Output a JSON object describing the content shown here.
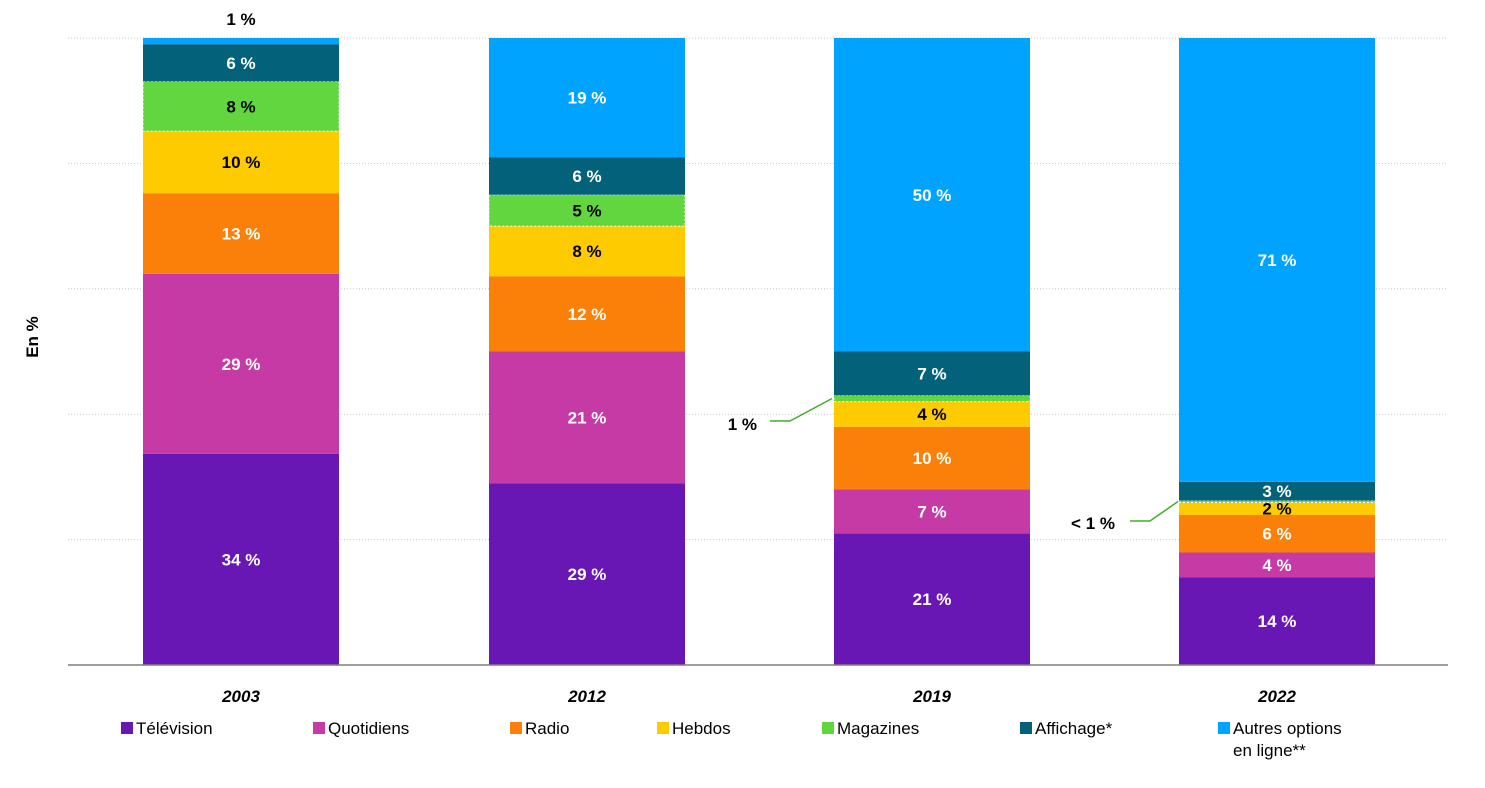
{
  "chart_data": {
    "type": "bar",
    "stacked": true,
    "ylabel": "En %",
    "ylim": [
      0,
      100
    ],
    "grid": true,
    "legend_position": "bottom",
    "categories": [
      "2003",
      "2012",
      "2019",
      "2022"
    ],
    "series": [
      {
        "name": "Télévision",
        "color": "#6817b5",
        "values": [
          34,
          29,
          21,
          14
        ],
        "labels": [
          "34 %",
          "29 %",
          "21 %",
          "14 %"
        ]
      },
      {
        "name": "Quotidiens",
        "color": "#c63aa6",
        "values": [
          29,
          21,
          7,
          4
        ],
        "labels": [
          "29 %",
          "21 %",
          "7 %",
          "4 %"
        ]
      },
      {
        "name": "Radio",
        "color": "#fa800a",
        "values": [
          13,
          12,
          10,
          6
        ],
        "labels": [
          "13 %",
          "12 %",
          "10 %",
          "6 %"
        ]
      },
      {
        "name": "Hebdos",
        "color": "#fecb00",
        "values": [
          10,
          8,
          4,
          2
        ],
        "labels": [
          "10 %",
          "8 %",
          "4 %",
          "2 %"
        ]
      },
      {
        "name": "Magazines",
        "color": "#62d63e",
        "values": [
          8,
          5,
          1,
          0.3
        ],
        "labels": [
          "8 %",
          "5 %",
          "1 %",
          "< 1 %"
        ]
      },
      {
        "name": "Affichage*",
        "color": "#04617a",
        "values": [
          6,
          6,
          7,
          3
        ],
        "labels": [
          "6 %",
          "6 %",
          "7 %",
          "3 %"
        ]
      },
      {
        "name": "Autres options en ligne**",
        "color": "#00a3ff",
        "values": [
          1,
          19,
          50,
          71
        ],
        "labels": [
          "1 %",
          "19 %",
          "50 %",
          "71 %"
        ]
      }
    ]
  },
  "legend": {
    "items": [
      {
        "label": "Télévision",
        "color": "#6817b5"
      },
      {
        "label": "Quotidiens",
        "color": "#c63aa6"
      },
      {
        "label": "Radio",
        "color": "#fa800a"
      },
      {
        "label": "Hebdos",
        "color": "#fecb00"
      },
      {
        "label": "Magazines",
        "color": "#62d63e"
      },
      {
        "label": "Affichage*",
        "color": "#04617a"
      },
      {
        "label": "Autres options\nen ligne**",
        "color": "#00a3ff"
      }
    ]
  }
}
